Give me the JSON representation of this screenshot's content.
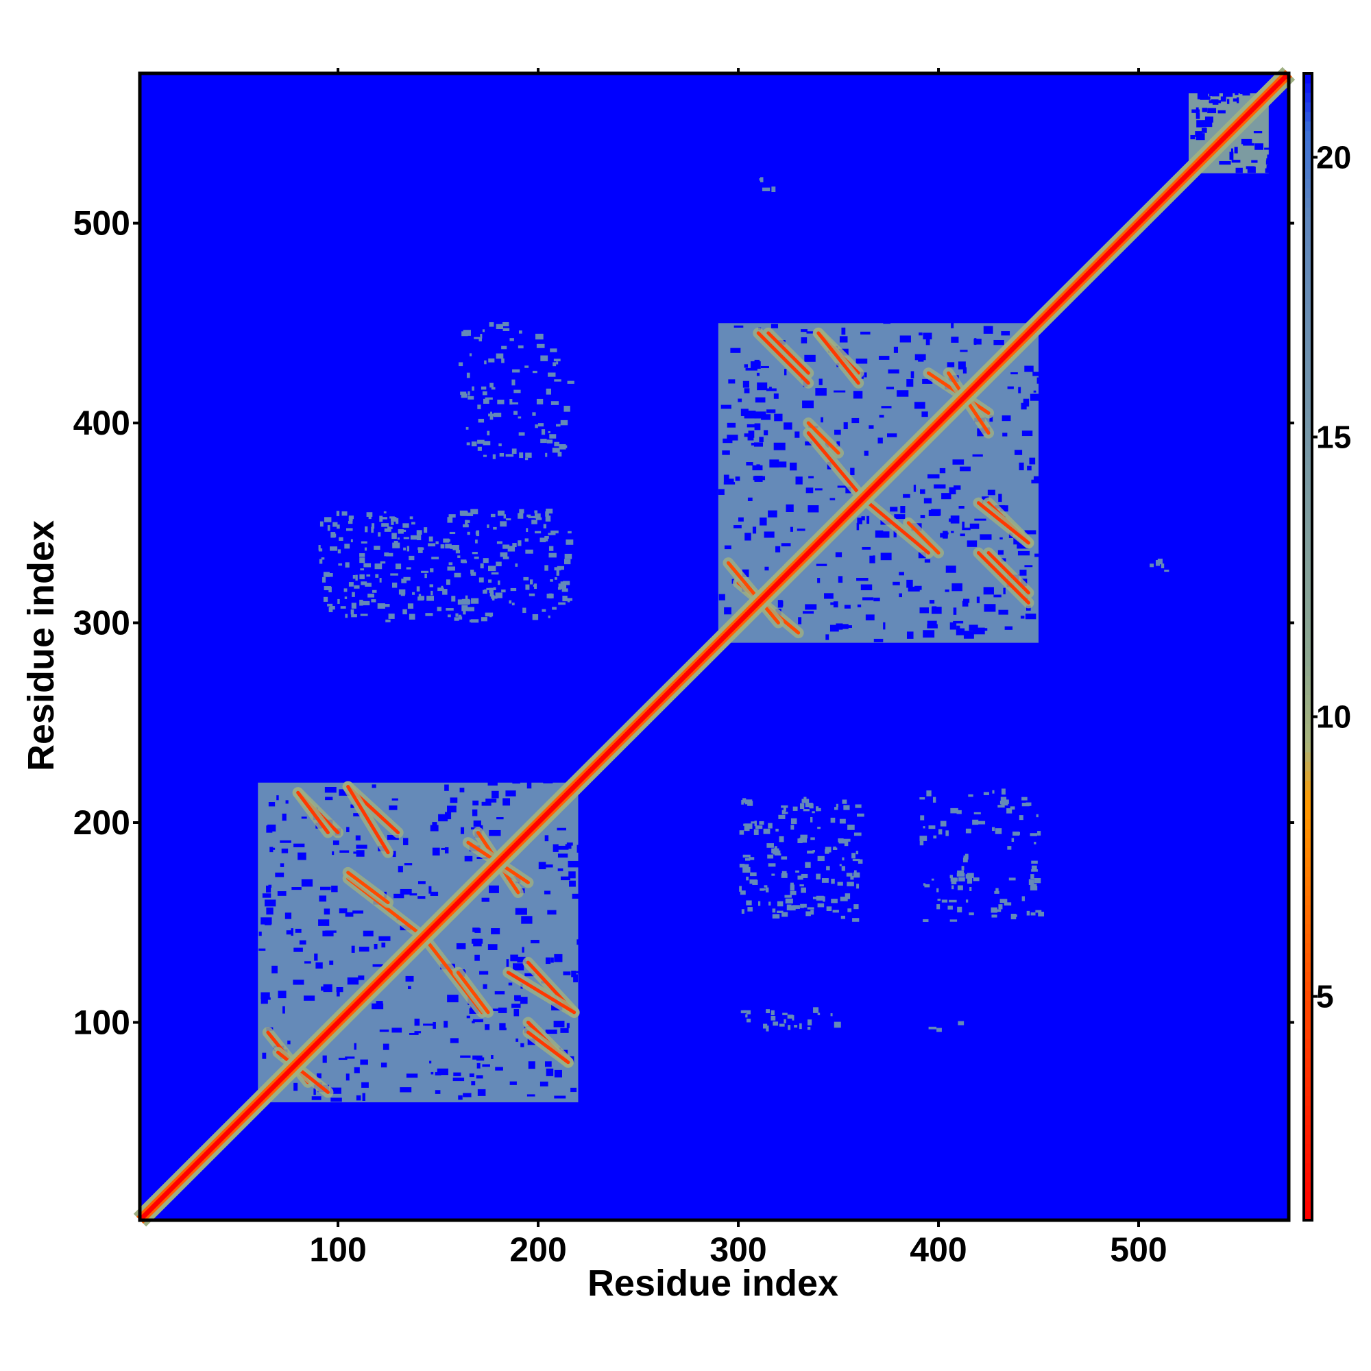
{
  "chart_data": {
    "type": "heatmap",
    "title": "",
    "xlabel": "Residue index",
    "ylabel": "Residue index",
    "xlim": [
      1,
      575
    ],
    "ylim": [
      1,
      575
    ],
    "x_ticks": [
      100,
      200,
      300,
      400,
      500
    ],
    "y_ticks": [
      100,
      200,
      300,
      400,
      500
    ],
    "colorbar": {
      "range": [
        1,
        21.5
      ],
      "ticks": [
        5,
        10,
        15,
        20
      ],
      "stops": [
        {
          "value": 1,
          "color": "#ff0000"
        },
        {
          "value": 5,
          "color": "#ff4a00"
        },
        {
          "value": 8.5,
          "color": "#ff9a00"
        },
        {
          "value": 9.5,
          "color": "#a8b47c"
        },
        {
          "value": 11,
          "color": "#8ea890"
        },
        {
          "value": 19,
          "color": "#5f86be"
        },
        {
          "value": 20.5,
          "color": "#3b6fd8"
        },
        {
          "value": 21.5,
          "color": "#0000ff"
        }
      ]
    },
    "background_value": 21.5,
    "diagonal": {
      "from": 1,
      "to": 575,
      "value": 1
    },
    "domains": [
      {
        "name": "",
        "from": 60,
        "to": 220,
        "value": 18
      },
      {
        "name": "",
        "from": 290,
        "to": 450,
        "value": 18
      },
      {
        "name": "",
        "from": 525,
        "to": 565,
        "value": 14
      }
    ],
    "contact_lines": [
      {
        "x": [
          80,
          100
        ],
        "y": [
          215,
          195
        ],
        "value": 4
      },
      {
        "x": [
          105,
          130
        ],
        "y": [
          218,
          195
        ],
        "value": 4
      },
      {
        "x": [
          105,
          140
        ],
        "y": [
          172,
          145
        ],
        "value": 5
      },
      {
        "x": [
          185,
          218
        ],
        "y": [
          125,
          105
        ],
        "value": 4
      },
      {
        "x": [
          195,
          215
        ],
        "y": [
          95,
          80
        ],
        "value": 4
      },
      {
        "x": [
          160,
          175
        ],
        "y": [
          125,
          105
        ],
        "value": 5
      },
      {
        "x": [
          170,
          190
        ],
        "y": [
          195,
          165
        ],
        "value": 5
      },
      {
        "x": [
          65,
          85
        ],
        "y": [
          95,
          70
        ],
        "value": 4
      },
      {
        "x": [
          315,
          335
        ],
        "y": [
          445,
          425
        ],
        "value": 4
      },
      {
        "x": [
          340,
          360
        ],
        "y": [
          445,
          425
        ],
        "value": 4
      },
      {
        "x": [
          335,
          350
        ],
        "y": [
          400,
          385
        ],
        "value": 5
      },
      {
        "x": [
          365,
          395
        ],
        "y": [
          360,
          335
        ],
        "value": 4
      },
      {
        "x": [
          420,
          445
        ],
        "y": [
          360,
          340
        ],
        "value": 4
      },
      {
        "x": [
          420,
          445
        ],
        "y": [
          335,
          310
        ],
        "value": 4
      },
      {
        "x": [
          395,
          425
        ],
        "y": [
          425,
          405
        ],
        "value": 5
      },
      {
        "x": [
          300,
          330
        ],
        "y": [
          320,
          295
        ],
        "value": 5
      }
    ],
    "scatter_patches": [
      {
        "x": [
          90,
          215
        ],
        "y": [
          300,
          355
        ],
        "value": 18,
        "density": 0.25
      },
      {
        "x": [
          160,
          215
        ],
        "y": [
          380,
          450
        ],
        "value": 18,
        "density": 0.15
      },
      {
        "x": [
          300,
          360
        ],
        "y": [
          150,
          210
        ],
        "value": 18,
        "density": 0.25
      },
      {
        "x": [
          390,
          450
        ],
        "y": [
          150,
          215
        ],
        "value": 18,
        "density": 0.15
      },
      {
        "x": [
          300,
          350
        ],
        "y": [
          95,
          105
        ],
        "value": 18,
        "density": 0.3
      },
      {
        "x": [
          395,
          410
        ],
        "y": [
          95,
          100
        ],
        "value": 18,
        "density": 0.2
      },
      {
        "x": [
          310,
          320
        ],
        "y": [
          515,
          525
        ],
        "value": 18,
        "density": 0.3
      },
      {
        "x": [
          505,
          515
        ],
        "y": [
          320,
          330
        ],
        "value": 18,
        "density": 0.3
      }
    ]
  }
}
